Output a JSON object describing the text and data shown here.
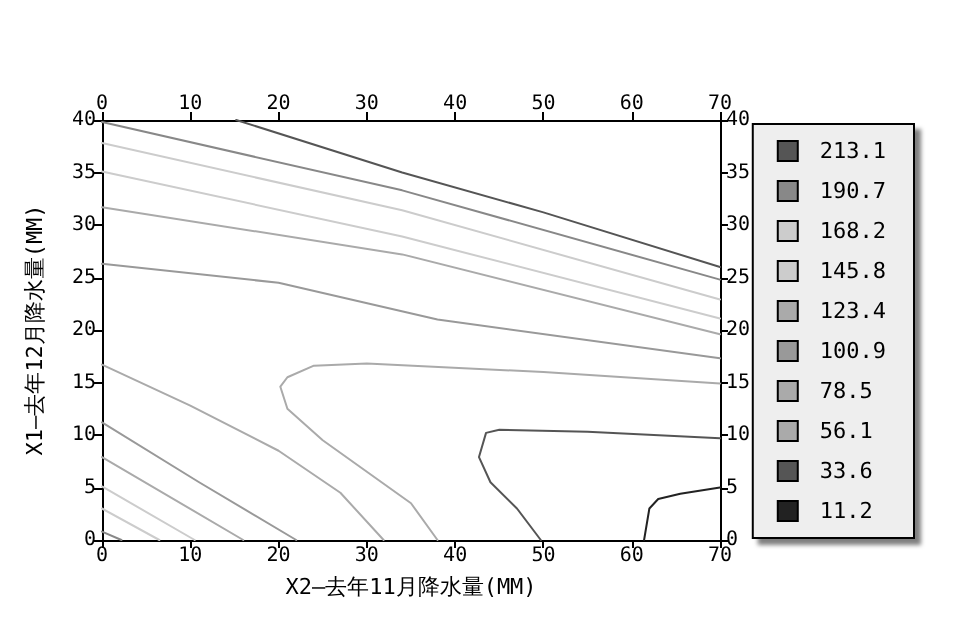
{
  "chart_data": {
    "type": "line",
    "xlabel": "X2—去年11月降水量(MM)",
    "ylabel": "X1—去年12月降水量(MM)",
    "xlim": [
      0,
      70
    ],
    "xticks": [
      0,
      10,
      20,
      30,
      40,
      50,
      60,
      70
    ],
    "x2lim": [
      0,
      70
    ],
    "x2ticks": [
      0,
      10,
      20,
      30,
      40,
      50,
      60,
      70
    ],
    "ylim": [
      0,
      40
    ],
    "yticks": [
      0,
      5,
      10,
      15,
      20,
      25,
      30,
      35,
      40
    ],
    "y2lim": [
      0,
      40
    ],
    "y2ticks": [
      0,
      5,
      10,
      15,
      20,
      25,
      30,
      35,
      40
    ],
    "grid": false,
    "legend": "right",
    "marker": "none",
    "line_style": "solid",
    "series": [
      {
        "name": "213.1",
        "color": "#555555",
        "x": [
          15.2,
          34,
          50,
          70
        ],
        "values": [
          40,
          35.0,
          31.2,
          26.0
        ]
      },
      {
        "name": "190.7",
        "color": "#888888",
        "x": [
          0,
          34,
          70,
          null,
          0,
          2.2
        ],
        "values": [
          39.8,
          33.3,
          24.8,
          null,
          0.8,
          0
        ]
      },
      {
        "name": "168.2",
        "color": "#cccccc",
        "x": [
          0,
          34,
          70,
          null,
          0,
          6.5
        ],
        "values": [
          37.8,
          31.4,
          22.9,
          null,
          3.0,
          0
        ]
      },
      {
        "name": "145.8",
        "color": "#cccccc",
        "x": [
          0,
          34,
          70,
          null,
          0,
          10.5
        ],
        "values": [
          35.1,
          28.9,
          21.1,
          null,
          5.1,
          0
        ]
      },
      {
        "name": "123.4",
        "color": "#aaaaaa",
        "x": [
          0,
          34,
          70,
          null,
          0,
          16
        ],
        "values": [
          31.7,
          27.2,
          19.6,
          null,
          7.9,
          0
        ]
      },
      {
        "name": "100.9",
        "color": "#999999",
        "x": [
          0,
          20,
          38,
          70,
          null,
          0,
          11,
          22
        ],
        "values": [
          26.3,
          24.5,
          21.0,
          17.3,
          null,
          11.2,
          5.5,
          0
        ]
      },
      {
        "name": "78.5",
        "color": "#aaaaaa",
        "x": [
          0,
          10,
          20,
          27,
          31.9
        ],
        "values": [
          16.7,
          12.8,
          8.5,
          4.5,
          0
        ]
      },
      {
        "name": "56.1",
        "color": "#aaaaaa",
        "x": [
          70,
          50,
          30,
          24,
          21,
          20.2,
          21,
          25,
          30,
          35,
          38
        ],
        "values": [
          14.9,
          16.0,
          16.8,
          16.6,
          15.5,
          14.6,
          12.5,
          9.5,
          6.5,
          3.5,
          0
        ]
      },
      {
        "name": "33.6",
        "color": "#555555",
        "x": [
          70,
          55,
          45,
          43.5,
          42.7,
          44,
          47,
          49.7
        ],
        "values": [
          9.7,
          10.3,
          10.5,
          10.2,
          7.9,
          5.5,
          3,
          0
        ]
      },
      {
        "name": "11.2",
        "color": "#222222",
        "x": [
          61.4,
          62,
          63,
          65.5,
          70
        ],
        "values": [
          0,
          3,
          3.9,
          4.4,
          5.0
        ]
      }
    ]
  }
}
